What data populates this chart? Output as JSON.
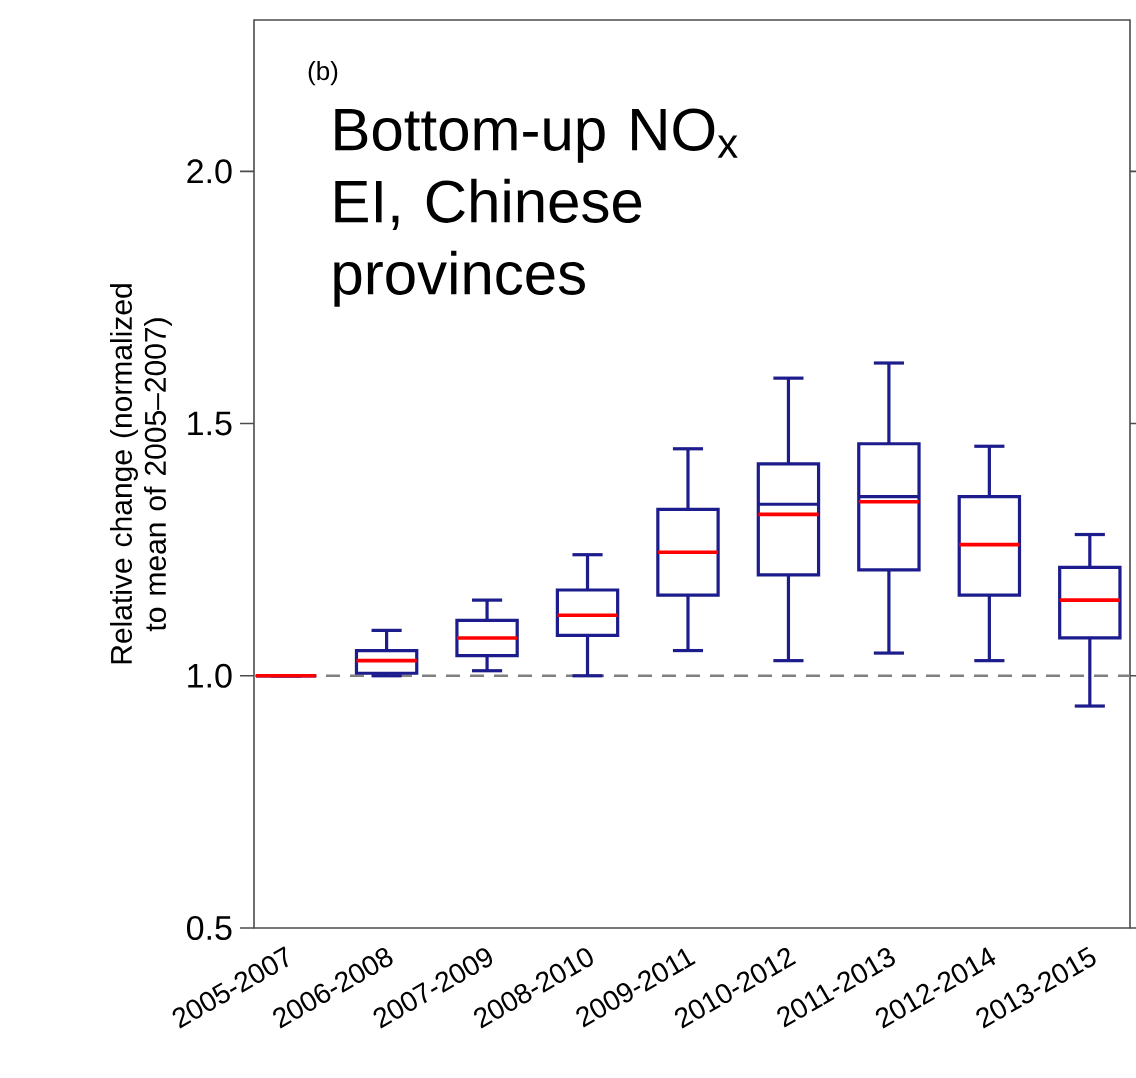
{
  "chart_data": {
    "type": "box",
    "ylabel": "Relative change (normalized to mean of 2005–2007)",
    "annotations": [
      "(b)",
      "Bottom-up NO$_{x}$ EI, Chinese provinces"
    ],
    "categories": [
      "2005-2007",
      "2006-2008",
      "2007-2009",
      "2008-2010",
      "2009-2011",
      "2010-2012",
      "2011-2013",
      "2012-2014",
      "2013-2015"
    ],
    "color": "#1c1c8c",
    "boxes": [
      {
        "low": 1.0,
        "q1": 1.0,
        "median": 1.0,
        "q3": 1.0,
        "high": 1.0
      },
      {
        "low": 1.0,
        "q1": 1.005,
        "median": 1.03,
        "q3": 1.05,
        "high": 1.09
      },
      {
        "low": 1.01,
        "q1": 1.04,
        "median": 1.075,
        "q3": 1.11,
        "high": 1.15
      },
      {
        "low": 1.0,
        "q1": 1.08,
        "median": 1.12,
        "q3": 1.17,
        "high": 1.24
      },
      {
        "low": 1.05,
        "q1": 1.16,
        "median": 1.245,
        "q3": 1.33,
        "high": 1.45
      },
      {
        "low": 1.03,
        "q1": 1.2,
        "median": 1.32,
        "q3": 1.42,
        "high": 1.59,
        "mean": 1.34
      },
      {
        "low": 1.045,
        "q1": 1.21,
        "median": 1.345,
        "q3": 1.46,
        "high": 1.62,
        "mean": 1.355
      },
      {
        "low": 1.03,
        "q1": 1.16,
        "median": 1.26,
        "q3": 1.355,
        "high": 1.455
      },
      {
        "low": 0.94,
        "q1": 1.075,
        "median": 1.15,
        "q3": 1.215,
        "high": 1.28
      }
    ],
    "ylim": [
      0.5,
      2.3
    ],
    "yticks": [
      {
        "value": 0.5,
        "label": "0.5"
      },
      {
        "value": 1.0,
        "label": "1.0"
      },
      {
        "value": 1.5,
        "label": "1.5"
      },
      {
        "value": 2.0,
        "label": "2.0"
      }
    ],
    "ref_lines": [
      {
        "axis": "y",
        "value": 1.0,
        "color": "#808080",
        "line_style": "dashed"
      }
    ]
  }
}
